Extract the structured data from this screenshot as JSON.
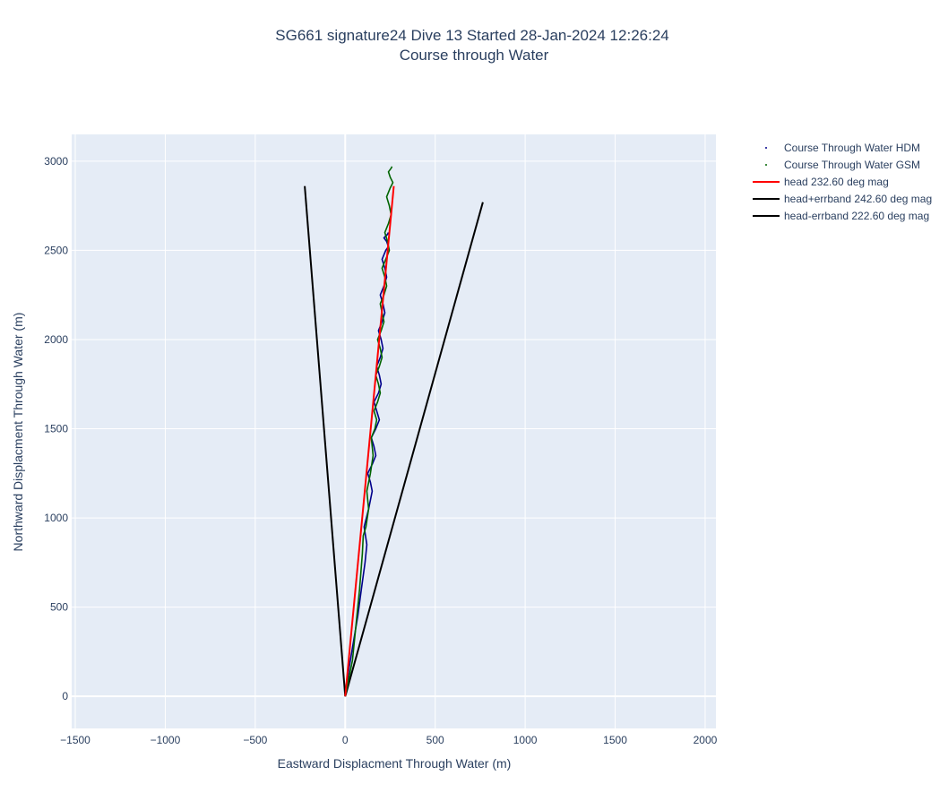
{
  "chart_data": {
    "type": "line",
    "title": "SG661 signature24 Dive 13 Started 28-Jan-2024 12:26:24",
    "subtitle": "Course through Water",
    "xlabel": "Eastward Displacment Through Water (m)",
    "ylabel": "Northward Displacment Through Water (m)",
    "xlim": [
      -1520,
      2060
    ],
    "ylim": [
      -180,
      3150
    ],
    "x_ticks": [
      -1500,
      -1000,
      -500,
      0,
      500,
      1000,
      1500,
      2000
    ],
    "x_tick_labels": [
      "−1500",
      "−1000",
      "−500",
      "0",
      "500",
      "1000",
      "1500",
      "2000"
    ],
    "y_ticks": [
      0,
      500,
      1000,
      1500,
      2000,
      2500,
      3000
    ],
    "y_tick_labels": [
      "0",
      "500",
      "1000",
      "1500",
      "2000",
      "2500",
      "3000"
    ],
    "grid": true,
    "legend_position": "top-right",
    "colors": {
      "plot_bg": "#e5ecf6",
      "grid": "#ffffff",
      "hdm": "#00008b",
      "gsm": "#006400",
      "head": "#ff0000",
      "errband": "#000000"
    },
    "series": [
      {
        "name": "Course Through Water HDM",
        "style": "dots",
        "color": "#00008b",
        "x": [
          0,
          20,
          45,
          70,
          90,
          110,
          120,
          105,
          130,
          150,
          140,
          125,
          150,
          170,
          160,
          145,
          170,
          190,
          175,
          160,
          185,
          200,
          190,
          175,
          195,
          210,
          200,
          185,
          205,
          220,
          210,
          195,
          215,
          230,
          220,
          205,
          225,
          240,
          230,
          215,
          235,
          240
        ],
        "y": [
          0,
          150,
          300,
          450,
          600,
          750,
          850,
          950,
          1050,
          1150,
          1200,
          1250,
          1300,
          1350,
          1400,
          1450,
          1500,
          1550,
          1600,
          1650,
          1700,
          1750,
          1800,
          1850,
          1900,
          1950,
          2000,
          2050,
          2100,
          2150,
          2200,
          2250,
          2300,
          2350,
          2400,
          2450,
          2500,
          2520,
          2550,
          2570,
          2590,
          2600
        ]
      },
      {
        "name": "Course Through Water GSM",
        "style": "dots",
        "color": "#006400",
        "x": [
          0,
          40,
          60,
          80,
          95,
          100,
          115,
          130,
          120,
          140,
          155,
          145,
          165,
          175,
          160,
          180,
          195,
          185,
          170,
          190,
          205,
          195,
          180,
          200,
          215,
          205,
          195,
          215,
          230,
          220,
          205,
          225,
          245,
          235,
          220,
          240,
          255,
          245,
          230,
          250,
          265,
          250,
          240,
          255,
          260
        ],
        "y": [
          0,
          200,
          400,
          600,
          800,
          900,
          950,
          1050,
          1150,
          1250,
          1350,
          1450,
          1500,
          1550,
          1600,
          1650,
          1700,
          1750,
          1800,
          1850,
          1900,
          1950,
          2000,
          2050,
          2100,
          2150,
          2200,
          2250,
          2300,
          2350,
          2400,
          2450,
          2500,
          2550,
          2600,
          2650,
          2700,
          2750,
          2800,
          2850,
          2880,
          2910,
          2940,
          2960,
          2970
        ]
      },
      {
        "name": "head 232.60 deg mag",
        "style": "line",
        "color": "#ff0000",
        "x": [
          0,
          270
        ],
        "y": [
          0,
          2860
        ]
      },
      {
        "name": "head+errband 242.60 deg mag",
        "style": "line",
        "color": "#000000",
        "x": [
          0,
          -225
        ],
        "y": [
          0,
          2860
        ]
      },
      {
        "name": "head-errband 222.60 deg mag",
        "style": "line",
        "color": "#000000",
        "x": [
          0,
          765
        ],
        "y": [
          0,
          2770
        ]
      }
    ]
  }
}
